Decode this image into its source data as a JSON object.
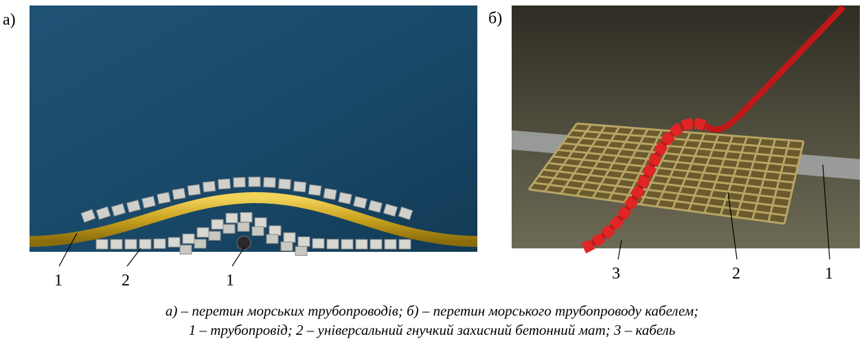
{
  "panels": [
    {
      "label": "а)",
      "callouts": [
        "1",
        "2",
        "1"
      ]
    },
    {
      "label": "б)",
      "callouts": [
        "3",
        "2",
        "1"
      ]
    }
  ],
  "caption": [
    "а) – перетин морських трубопроводів; б) – перетин морського трубопроводу кабелем;",
    "1 – трубопровід; 2 – універсальний гнучкий захисний бетонний мат; 3 – кабель"
  ]
}
